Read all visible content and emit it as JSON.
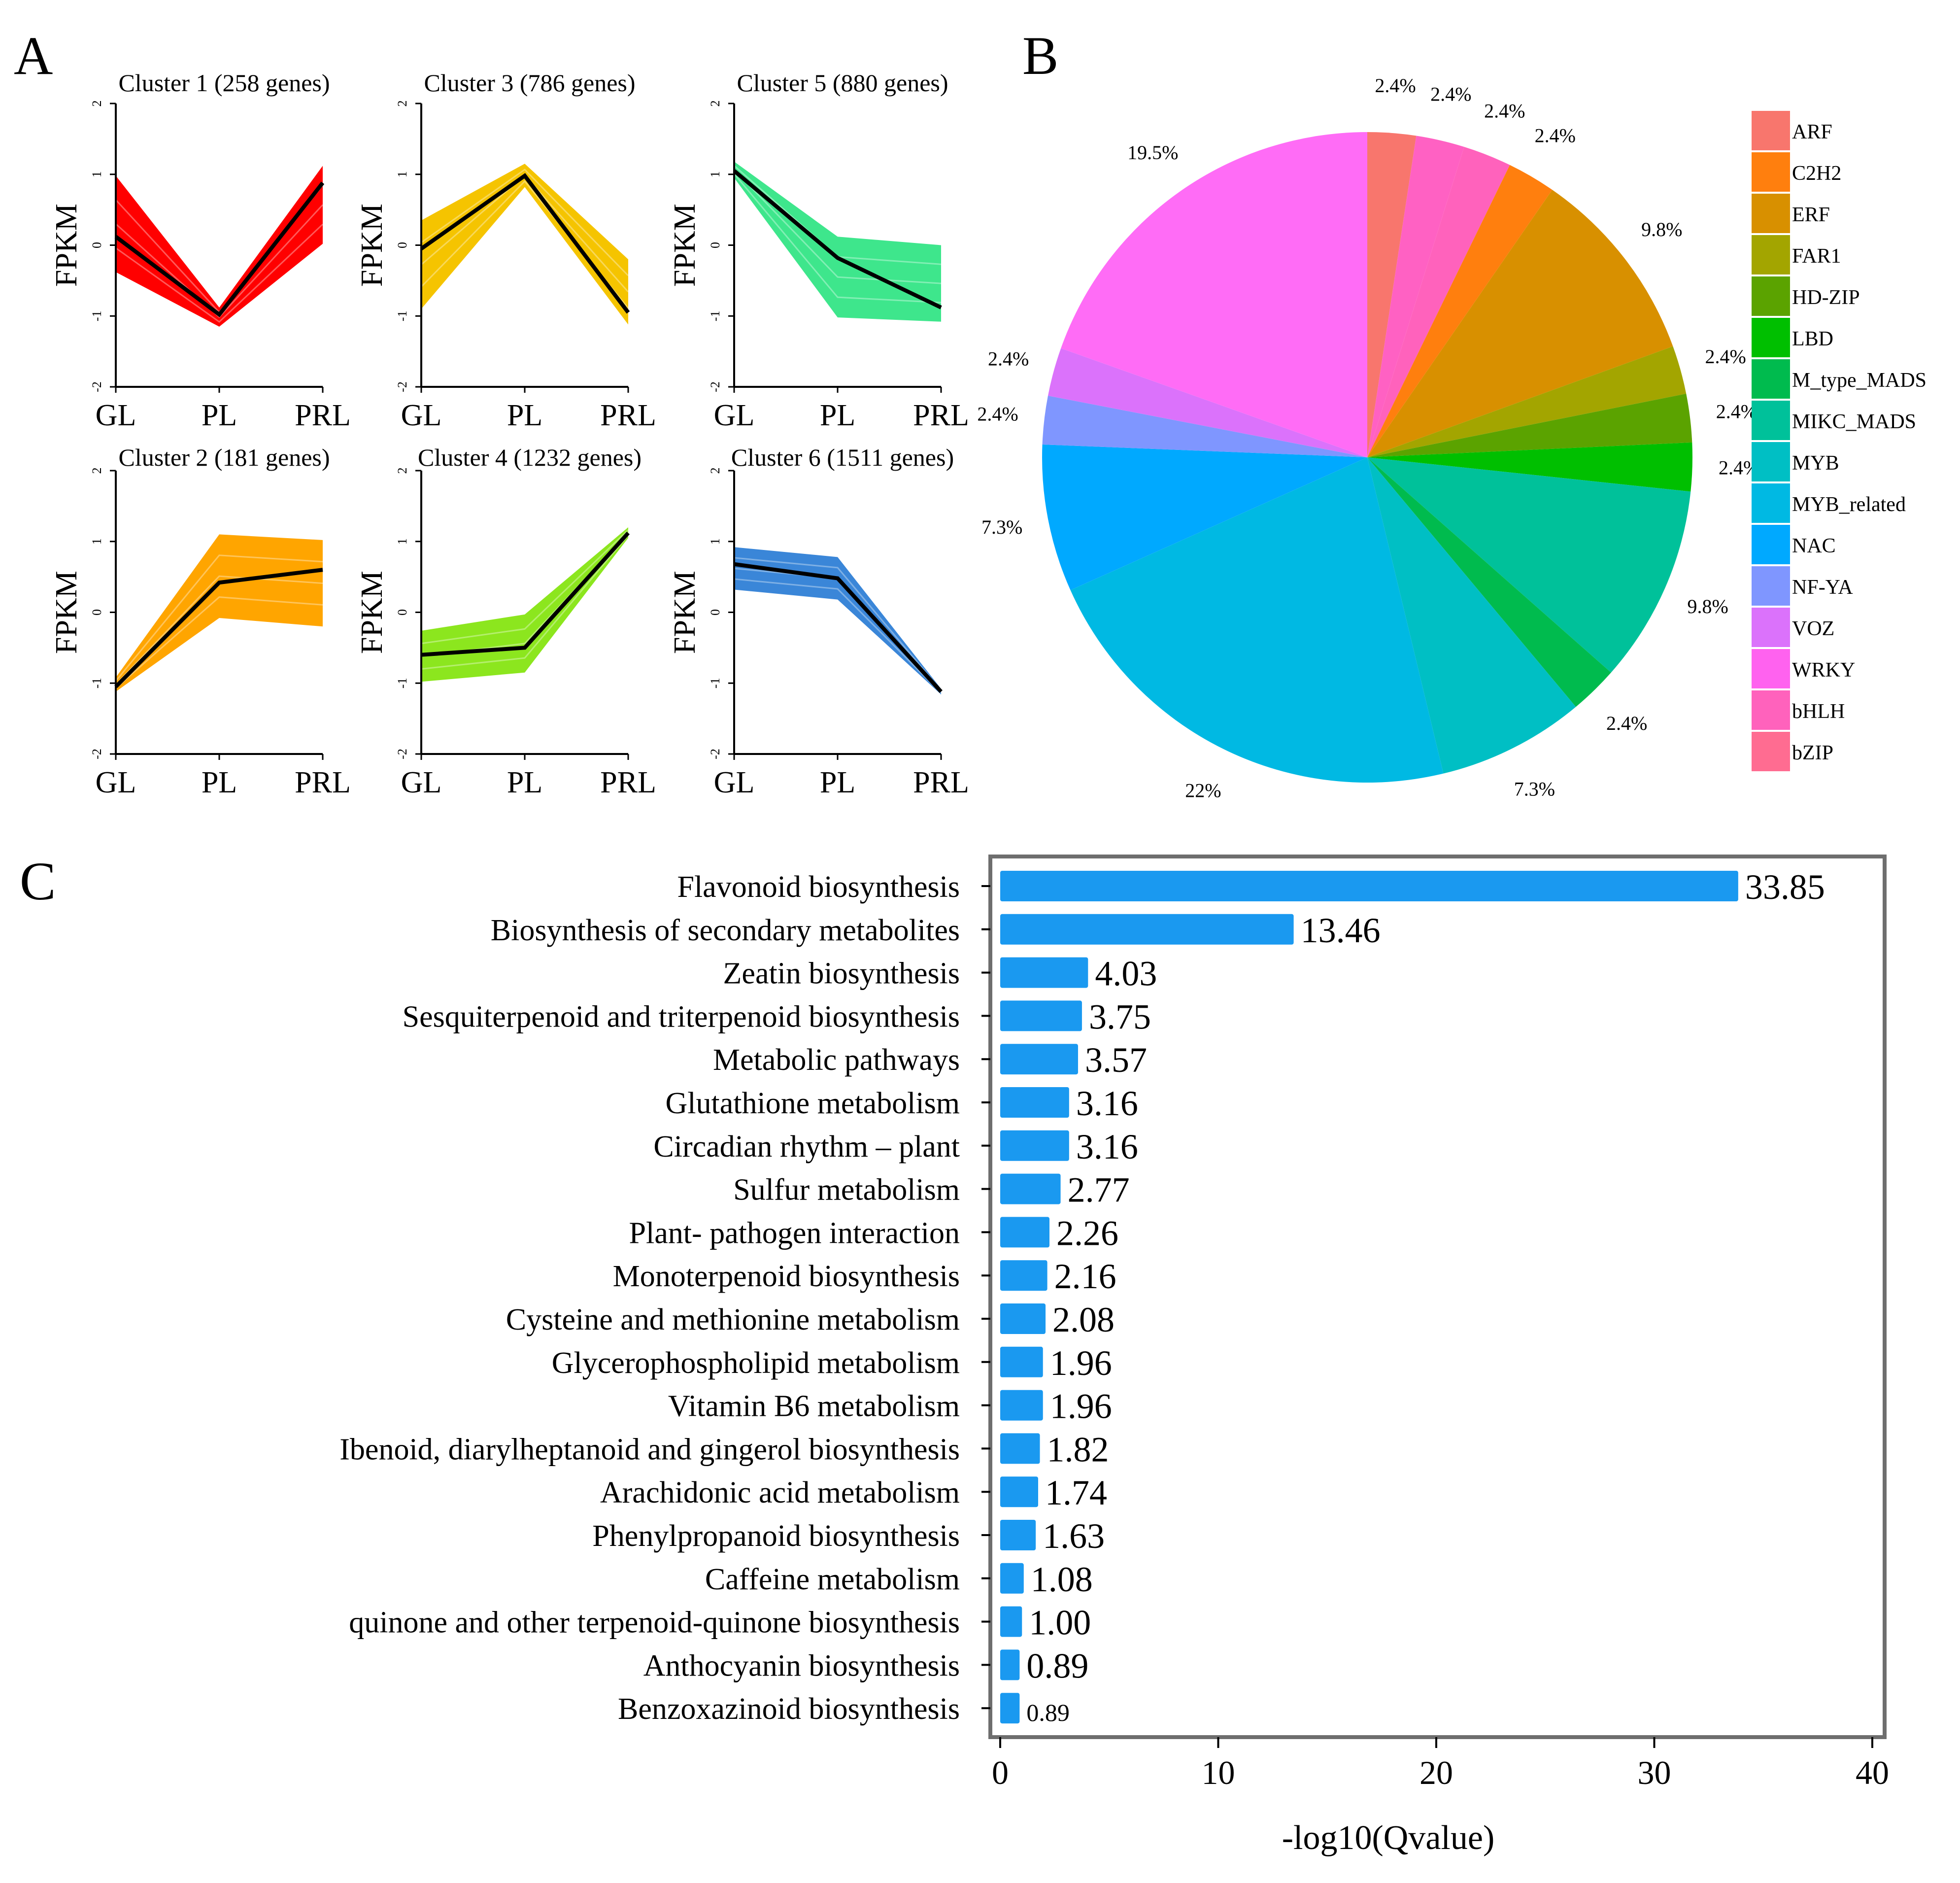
{
  "panel_labels": [
    "A",
    "B",
    "C"
  ],
  "chart_data": [
    {
      "type": "line",
      "panel": "A",
      "ylabel": "FPKM",
      "x_categories": [
        "GL",
        "PL",
        "PRL"
      ],
      "ylim": [
        -2,
        2
      ],
      "yticks": [
        "-2",
        "-1",
        "0",
        "1",
        "2"
      ],
      "clusters": [
        {
          "title": "Cluster 1 (258 genes)",
          "color": "#ff0000",
          "mean": [
            0.12,
            -0.98,
            0.88
          ],
          "band_upper": [
            0.98,
            -0.88,
            1.12
          ],
          "band_lower": [
            -0.38,
            -1.15,
            0.02
          ]
        },
        {
          "title": "Cluster 3 (786 genes)",
          "color": "#f5c400",
          "mean": [
            -0.05,
            0.98,
            -0.95
          ],
          "band_upper": [
            0.35,
            1.15,
            -0.2
          ],
          "band_lower": [
            -0.9,
            0.82,
            -1.12
          ]
        },
        {
          "title": "Cluster 5 (880 genes)",
          "color": "#3ee68c",
          "mean": [
            1.05,
            -0.18,
            -0.88
          ],
          "band_upper": [
            1.18,
            0.12,
            0.0
          ],
          "band_lower": [
            0.95,
            -1.02,
            -1.08
          ]
        },
        {
          "title": "Cluster 2 (181 genes)",
          "color": "#ffa500",
          "mean": [
            -1.05,
            0.42,
            0.6
          ],
          "band_upper": [
            -0.92,
            1.1,
            1.02
          ],
          "band_lower": [
            -1.12,
            -0.08,
            -0.2
          ]
        },
        {
          "title": "Cluster 4 (1232 genes)",
          "color": "#8ce61e",
          "mean": [
            -0.6,
            -0.5,
            1.12
          ],
          "band_upper": [
            -0.26,
            -0.03,
            1.2
          ],
          "band_lower": [
            -0.98,
            -0.85,
            1.05
          ]
        },
        {
          "title": "Cluster 6 (1511 genes)",
          "color": "#3a86d8",
          "mean": [
            0.68,
            0.48,
            -1.12
          ],
          "band_upper": [
            0.92,
            0.78,
            -1.08
          ],
          "band_lower": [
            0.32,
            0.18,
            -1.16
          ]
        }
      ]
    },
    {
      "type": "pie",
      "panel": "B",
      "legend_position": "right",
      "slices": [
        {
          "name": "ARF",
          "value": 2.4,
          "label": "2.4%",
          "color": "#f8766d"
        },
        {
          "name": "bZIP",
          "value": 2.4,
          "label": "2.4%",
          "color": "#ff61c3"
        },
        {
          "name": "bHLH",
          "value": 2.4,
          "label": "2.4%",
          "color": "#ff62bc"
        },
        {
          "name": "C2H2",
          "value": 2.4,
          "label": "2.4%",
          "color": "#ff7f0e"
        },
        {
          "name": "ERF",
          "value": 9.8,
          "label": "9.8%",
          "color": "#d89000"
        },
        {
          "name": "FAR1",
          "value": 2.4,
          "label": "2.4%",
          "color": "#a3a500"
        },
        {
          "name": "HD-ZIP",
          "value": 2.4,
          "label": "2.4%",
          "color": "#5ba300"
        },
        {
          "name": "LBD",
          "value": 2.4,
          "label": "2.4%",
          "color": "#00bf00"
        },
        {
          "name": "MIKC_MADS",
          "value": 9.8,
          "label": "9.8%",
          "color": "#00c19a"
        },
        {
          "name": "M_type_MADS",
          "value": 2.4,
          "label": "2.4%",
          "color": "#00bb4e"
        },
        {
          "name": "MYB",
          "value": 7.3,
          "label": "7.3%",
          "color": "#00bfc4"
        },
        {
          "name": "MYB_related",
          "value": 22.0,
          "label": "22%",
          "color": "#00b9e3"
        },
        {
          "name": "NAC",
          "value": 7.3,
          "label": "7.3%",
          "color": "#00a9ff"
        },
        {
          "name": "NF-YA",
          "value": 2.4,
          "label": "2.4%",
          "color": "#7f96ff"
        },
        {
          "name": "VOZ",
          "value": 2.4,
          "label": "2.4%",
          "color": "#db72fb"
        },
        {
          "name": "WRKY",
          "value": 19.5,
          "label": "19.5%",
          "color": "#ff6cf6"
        }
      ],
      "legend": [
        "ARF",
        "C2H2",
        "ERF",
        "FAR1",
        "HD-ZIP",
        "LBD",
        "M_type_MADS",
        "MIKC_MADS",
        "MYB",
        "MYB_related",
        "NAC",
        "NF-YA",
        "VOZ",
        "WRKY",
        "bHLH",
        "bZIP"
      ],
      "legend_colors": [
        "#f8766d",
        "#ff7f0e",
        "#d89000",
        "#a3a500",
        "#5ba300",
        "#00bf00",
        "#00bb4e",
        "#00c19a",
        "#00bfc4",
        "#00b9e3",
        "#00a9ff",
        "#7f96ff",
        "#db72fb",
        "#ff62ef",
        "#ff62bc",
        "#ff6c91"
      ]
    },
    {
      "type": "bar",
      "orientation": "horizontal",
      "panel": "C",
      "color": "#1a99f0",
      "xlabel": "-log10(Qvalue)",
      "xlim": [
        0,
        40
      ],
      "xticks": [
        "0",
        "10",
        "20",
        "30",
        "40"
      ],
      "categories": [
        "Flavonoid biosynthesis",
        "Biosynthesis of secondary metabolites",
        "Zeatin biosynthesis",
        "Sesquiterpenoid and triterpenoid biosynthesis",
        "Metabolic pathways",
        "Glutathione metabolism",
        "Circadian rhythm – plant",
        "Sulfur metabolism",
        "Plant- pathogen interaction",
        "Monoterpenoid biosynthesis",
        "Cysteine and methionine metabolism",
        "Glycerophospholipid metabolism",
        "Vitamin B6 metabolism",
        "Ibenoid, diarylheptanoid and gingerol biosynthesis",
        "Arachidonic acid metabolism",
        "Phenylpropanoid biosynthesis",
        "Caffeine metabolism",
        "quinone and other terpenoid-quinone biosynthesis",
        "Anthocyanin biosynthesis",
        "Benzoxazinoid biosynthesis"
      ],
      "values": [
        33.85,
        13.46,
        4.03,
        3.75,
        3.57,
        3.16,
        3.16,
        2.77,
        2.26,
        2.16,
        2.08,
        1.96,
        1.96,
        1.82,
        1.74,
        1.63,
        1.08,
        1.0,
        0.89,
        0.89
      ],
      "value_labels": [
        "33.85",
        "13.46",
        "4.03",
        "3.75",
        "3.57",
        "3.16",
        "3.16",
        "2.77",
        "2.26",
        "2.16",
        "2.08",
        "1.96",
        "1.96",
        "1.82",
        "1.74",
        "1.63",
        "1.08",
        "1.00",
        "0.89",
        "0.89"
      ]
    }
  ]
}
